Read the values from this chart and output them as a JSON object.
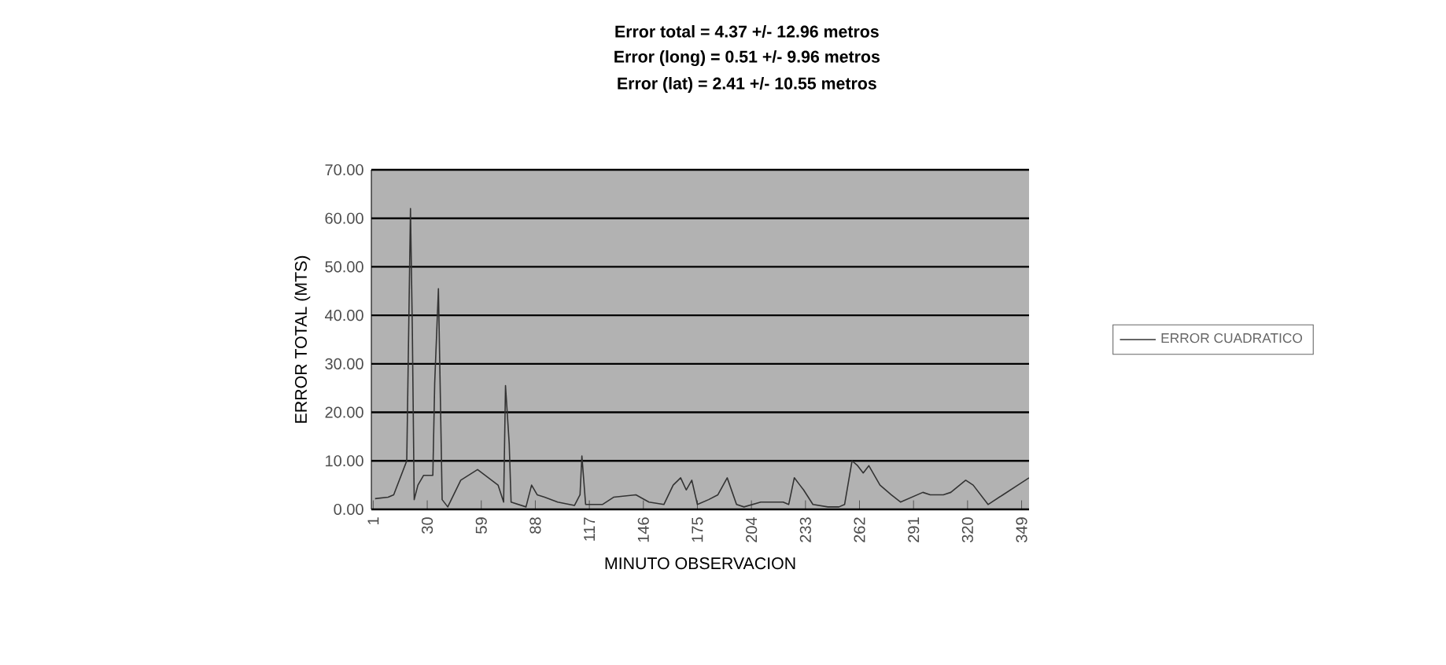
{
  "chart_data": {
    "type": "line",
    "title": "Error total = 4.37 +/- 12.96 metros",
    "subtitle": "Error (long) = 0.51 +/- 9.96 metros",
    "annotations": [
      "Error (lat) = 2.41 +/- 10.55 metros"
    ],
    "xlabel": "MINUTO OBSERVACION",
    "ylabel": "ERROR TOTAL (MTS)",
    "xlim": [
      0,
      353
    ],
    "xticks": [
      1,
      30,
      59,
      88,
      117,
      146,
      175,
      204,
      233,
      262,
      291,
      320,
      349
    ],
    "ylim": [
      0,
      70
    ],
    "yticks": [
      {
        "value": 0,
        "label": "0.00"
      },
      {
        "value": 10,
        "label": "10.00"
      },
      {
        "value": 20,
        "label": "20.00"
      },
      {
        "value": 30,
        "label": "30.00"
      },
      {
        "value": 40,
        "label": "40.00"
      },
      {
        "value": 50,
        "label": "50.00"
      },
      {
        "value": 60,
        "label": "60.00"
      },
      {
        "value": 70,
        "label": "70.00"
      }
    ],
    "grid": "y",
    "legend": "right",
    "series": [
      {
        "name": "ERROR CUADRATICO",
        "color": "#333333",
        "x": [
          2,
          9,
          12,
          19,
          21,
          22,
          23,
          25,
          28,
          33,
          34,
          36,
          37,
          38,
          41,
          48,
          57,
          68,
          71,
          72,
          74,
          75,
          83,
          86,
          89,
          93,
          100,
          109,
          112,
          113,
          115,
          124,
          130,
          142,
          149,
          157,
          162,
          166,
          169,
          172,
          175,
          181,
          186,
          191,
          196,
          200,
          209,
          221,
          224,
          227,
          230,
          232,
          237,
          245,
          251,
          254,
          258,
          261,
          264,
          267,
          273,
          279,
          284,
          290,
          296,
          300,
          307,
          311,
          319,
          323,
          331,
          339,
          347,
          353
        ],
        "values": [
          2.2,
          2.5,
          3,
          10,
          62,
          37,
          2,
          5,
          7,
          7,
          26,
          45.5,
          24,
          2,
          0.5,
          6,
          8.2,
          5,
          1.5,
          25.5,
          13.5,
          1.5,
          0.5,
          5,
          3,
          2.5,
          1.5,
          0.8,
          3,
          11,
          1,
          1,
          2.5,
          3,
          1.5,
          1,
          5,
          6.5,
          4,
          6,
          1,
          2,
          3,
          6.5,
          1,
          0.5,
          1.5,
          1.5,
          1,
          6.5,
          5,
          4,
          1,
          0.5,
          0.5,
          1,
          10,
          9,
          7.5,
          9,
          5,
          3,
          1.5,
          2.5,
          3.5,
          3,
          3,
          3.5,
          6,
          5,
          1,
          3,
          5,
          6.5
        ]
      }
    ]
  }
}
